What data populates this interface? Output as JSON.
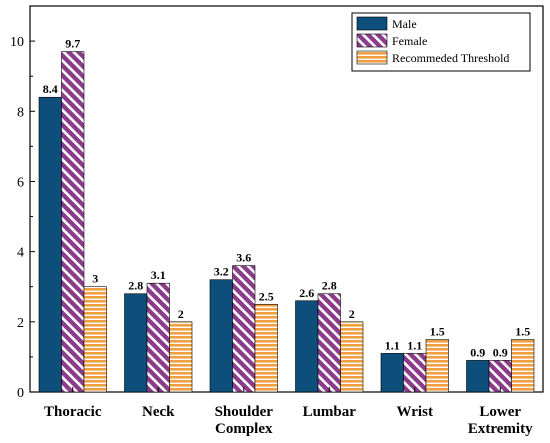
{
  "chart_data": {
    "type": "bar",
    "categories": [
      [
        "Thoracic"
      ],
      [
        "Neck"
      ],
      [
        "Shoulder",
        "Complex"
      ],
      [
        "Lumbar"
      ],
      [
        "Wrist"
      ],
      [
        "Lower",
        "Extremity"
      ]
    ],
    "series": [
      {
        "name": "Male",
        "values": [
          8.4,
          2.8,
          3.2,
          2.6,
          1.1,
          0.9
        ],
        "labels": [
          "8.4",
          "2.8",
          "3.2",
          "2.6",
          "1.1",
          "0.9"
        ],
        "color": "#0e4e7a",
        "pattern": "solid"
      },
      {
        "name": "Female",
        "values": [
          9.7,
          3.1,
          3.6,
          2.8,
          1.1,
          0.9
        ],
        "labels": [
          "9.7",
          "3.1",
          "3.6",
          "2.8",
          "1.1",
          "0.9"
        ],
        "color": "#8a3c8a",
        "pattern": "diagonal-stripes"
      },
      {
        "name": "Recommeded Threshold",
        "values": [
          3,
          2,
          2.5,
          2,
          1.5,
          1.5
        ],
        "labels": [
          "3",
          "2",
          "2.5",
          "2",
          "1.5",
          "1.5"
        ],
        "color": "#f0a040",
        "pattern": "horizontal-stripes"
      }
    ],
    "title": "",
    "xlabel": "",
    "ylabel": "",
    "ylim": [
      0,
      11
    ],
    "yticks": [
      0,
      2,
      4,
      6,
      8,
      10
    ],
    "ytick_labels": [
      "0",
      "2",
      "4",
      "6",
      "8",
      "10"
    ],
    "grid": false,
    "legend_position": "top-right"
  }
}
